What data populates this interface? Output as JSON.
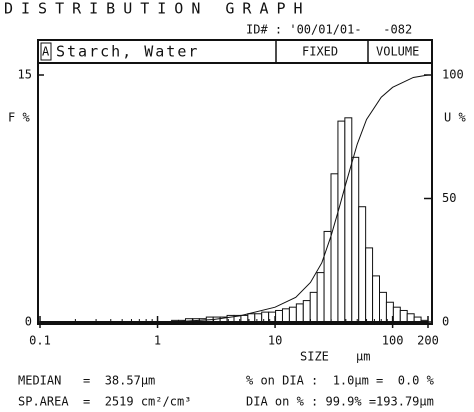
{
  "chart_data": {
    "type": "histogram",
    "title": "DISTRIBUTION GRAPH",
    "id": "ID# : '00/01/01-   -082",
    "sample_tag": "A",
    "sample": "Starch, Water",
    "mode": "FIXED",
    "basis": "VOLUME",
    "ylabel": "F %",
    "y2label": "U %",
    "xlabel": "SIZE",
    "xunit": "μm",
    "xscale": "log",
    "xlim": [
      0.1,
      200
    ],
    "xticks": [
      0.1,
      1,
      10,
      100,
      200
    ],
    "x_minor_ticks": [
      0.2,
      0.3,
      0.4,
      0.5,
      0.6,
      0.7,
      0.8,
      0.9,
      2,
      3,
      4,
      5,
      6,
      7,
      8,
      9,
      20,
      30,
      40,
      50,
      60,
      70,
      80,
      90
    ],
    "ylim": [
      0,
      15
    ],
    "yticks": [
      0,
      15
    ],
    "y2lim": [
      0,
      100
    ],
    "y2ticks": [
      0,
      50,
      100
    ],
    "color": "#111111",
    "bins": [
      1.318,
      1.51,
      1.729,
      1.981,
      2.269,
      2.599,
      2.976,
      3.409,
      3.905,
      4.472,
      5.122,
      5.867,
      6.72,
      7.697,
      8.816,
      10.1,
      11.56,
      13.24,
      15.17,
      17.38,
      19.9,
      22.8,
      26.11,
      29.91,
      34.26,
      39.23,
      44.94,
      51.47,
      58.95,
      67.52,
      77.34,
      88.58,
      101.5,
      116.2,
      133.1,
      152.5,
      174.6,
      200
    ],
    "values": [
      0.1,
      0.1,
      0.2,
      0.2,
      0.2,
      0.3,
      0.3,
      0.3,
      0.4,
      0.4,
      0.4,
      0.5,
      0.5,
      0.6,
      0.6,
      0.7,
      0.8,
      0.9,
      1.1,
      1.3,
      1.8,
      3.0,
      5.5,
      9.0,
      12.2,
      12.4,
      10.0,
      7.0,
      4.5,
      2.8,
      1.8,
      1.2,
      0.9,
      0.7,
      0.5,
      0.3,
      0.1
    ],
    "cumulative": {
      "axis": "y2",
      "x": [
        1.3,
        3,
        5,
        10,
        15,
        20,
        25,
        30,
        35,
        40,
        50,
        60,
        80,
        100,
        150,
        200
      ],
      "values": [
        0,
        1,
        2.5,
        6,
        10,
        16,
        24,
        35,
        46,
        56,
        72,
        82,
        91,
        95,
        99,
        100
      ]
    },
    "stats": [
      "MEDIAN   =  38.57μm",
      "% on DIA :  1.0μm =  0.0 %",
      "SP.AREA  =  2519 cm²/cm³",
      "DIA on % : 99.9% =193.79μm"
    ]
  }
}
